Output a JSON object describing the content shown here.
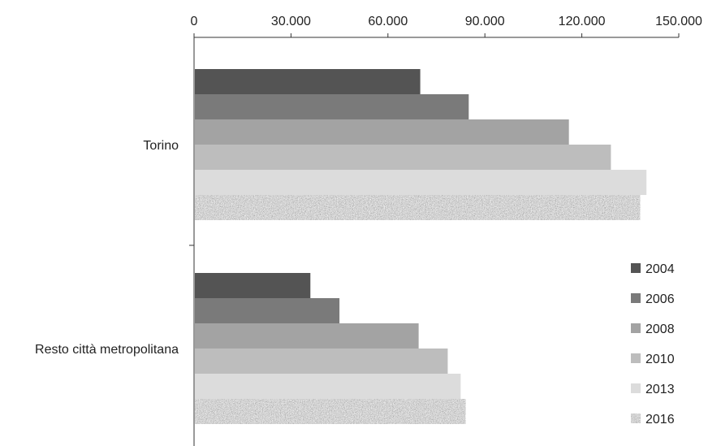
{
  "chart_data": {
    "type": "bar",
    "orientation": "horizontal",
    "categories": [
      "Torino",
      "Resto città metropolitana"
    ],
    "series": [
      {
        "name": "2004",
        "color": "#545454",
        "pattern": false,
        "values": [
          70000,
          36000
        ]
      },
      {
        "name": "2006",
        "color": "#7a7a7a",
        "pattern": false,
        "values": [
          85000,
          45000
        ]
      },
      {
        "name": "2008",
        "color": "#a3a3a3",
        "pattern": false,
        "values": [
          116000,
          69500
        ]
      },
      {
        "name": "2010",
        "color": "#bdbdbd",
        "pattern": false,
        "values": [
          129000,
          78500
        ]
      },
      {
        "name": "2013",
        "color": "#dcdcdc",
        "pattern": true,
        "pattern_kind": "none",
        "values": [
          140000,
          82500
        ]
      },
      {
        "name": "2016",
        "color": "#9a9a9a",
        "pattern": true,
        "pattern_kind": "granite",
        "values": [
          138000,
          84000
        ]
      }
    ],
    "xlim": [
      0,
      150000
    ],
    "x_ticks": [
      {
        "value": 0,
        "label": "0"
      },
      {
        "value": 30000,
        "label": "30.000"
      },
      {
        "value": 60000,
        "label": "60.000"
      },
      {
        "value": 90000,
        "label": "90.000"
      },
      {
        "value": 120000,
        "label": "120.000"
      },
      {
        "value": 150000,
        "label": "150.000"
      }
    ],
    "x_axis_position": "top",
    "grid": false,
    "legend_position": "bottom-right",
    "title": "",
    "xlabel": "",
    "ylabel": ""
  }
}
